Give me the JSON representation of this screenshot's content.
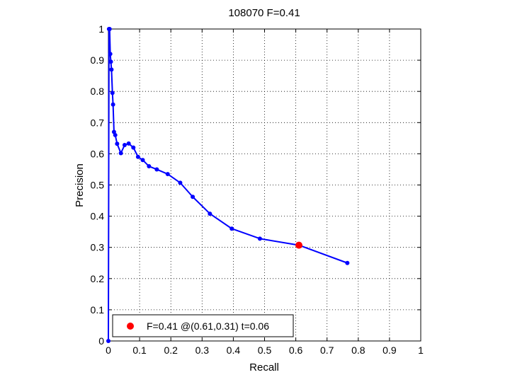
{
  "chart_data": {
    "type": "line",
    "title": "108070 F=0.41",
    "xlabel": "Recall",
    "ylabel": "Precision",
    "xlim": [
      0,
      1
    ],
    "ylim": [
      0,
      1
    ],
    "grid": true,
    "x_ticks": [
      "0",
      "0.1",
      "0.2",
      "0.3",
      "0.4",
      "0.5",
      "0.6",
      "0.7",
      "0.8",
      "0.9",
      "1"
    ],
    "y_ticks": [
      "0",
      "0.1",
      "0.2",
      "0.3",
      "0.4",
      "0.5",
      "0.6",
      "0.7",
      "0.8",
      "0.9",
      "1"
    ],
    "series": [
      {
        "color": "#0000ff",
        "x": [
          0.0,
          0.002,
          0.004,
          0.006,
          0.008,
          0.01,
          0.013,
          0.015,
          0.018,
          0.022,
          0.028,
          0.04,
          0.052,
          0.065,
          0.08,
          0.095,
          0.11,
          0.13,
          0.155,
          0.19,
          0.23,
          0.27,
          0.325,
          0.395,
          0.485,
          0.61,
          0.765
        ],
        "y": [
          0.0,
          1.0,
          1.0,
          0.92,
          0.895,
          0.87,
          0.795,
          0.758,
          0.67,
          0.66,
          0.632,
          0.602,
          0.628,
          0.633,
          0.62,
          0.59,
          0.58,
          0.56,
          0.55,
          0.535,
          0.507,
          0.462,
          0.408,
          0.36,
          0.328,
          0.307,
          0.25
        ]
      }
    ],
    "highlight": {
      "x": 0.61,
      "y": 0.307,
      "color": "#ff0000"
    },
    "legend": {
      "location": "bottom-left",
      "label": "F=0.41 @(0.61,0.31) t=0.06"
    }
  }
}
